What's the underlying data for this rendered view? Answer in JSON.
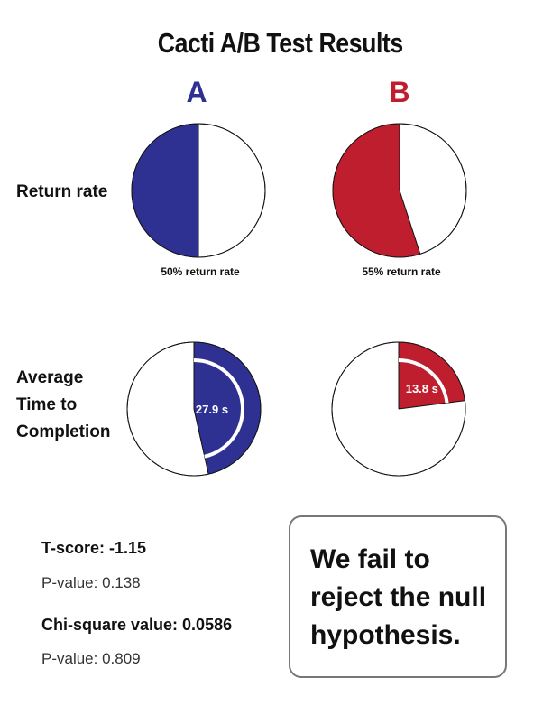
{
  "title": "Cacti A/B Test Results",
  "groups": [
    {
      "name": "A",
      "color": "#2e3192"
    },
    {
      "name": "B",
      "color": "#be1e2d"
    }
  ],
  "rows": [
    {
      "label_lines": [
        "Return rate"
      ]
    },
    {
      "label_lines": [
        "Average",
        "Time to",
        "Completion"
      ]
    }
  ],
  "stats": {
    "t_score": "T-score: -1.15",
    "t_p_value": "P-value: 0.138",
    "chi_square": "Chi-square value: 0.0586",
    "chi_p_value": "P-value: 0.809"
  },
  "conclusion": "We fail to reject the null hypothesis.",
  "chart_data": [
    {
      "type": "pie",
      "title": "Return rate",
      "categories": [
        "A",
        "B"
      ],
      "values": [
        50,
        55
      ],
      "unit": "%",
      "labels": [
        "50% return rate",
        "55% return rate"
      ]
    },
    {
      "type": "pie",
      "title": "Average Time to Completion",
      "categories": [
        "A",
        "B"
      ],
      "values": [
        27.9,
        13.8
      ],
      "unit": "s",
      "full_circle_value": 60,
      "labels": [
        "27.9 s",
        "13.8 s"
      ]
    }
  ]
}
